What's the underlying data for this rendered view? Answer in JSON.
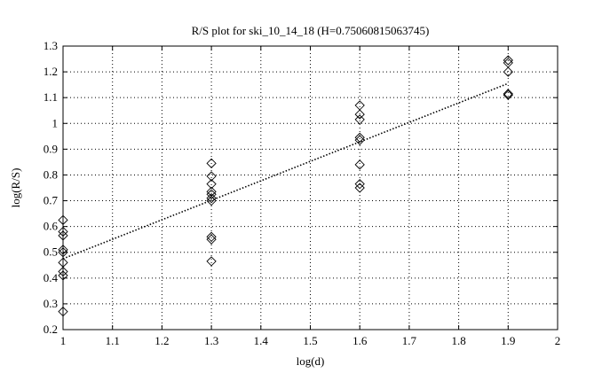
{
  "chart_data": {
    "type": "scatter",
    "title": "R/S plot for ski_10_14_18 (H=0.75060815063745)",
    "xlabel": "log(d)",
    "ylabel": "log(R/S)",
    "xlim": [
      1,
      2
    ],
    "ylim": [
      0.2,
      1.3
    ],
    "xticks": [
      "1",
      "1.1",
      "1.2",
      "1.3",
      "1.4",
      "1.5",
      "1.6",
      "1.7",
      "1.8",
      "1.9",
      "2"
    ],
    "yticks": [
      "0.2",
      "0.3",
      "0.4",
      "0.5",
      "0.6",
      "0.7",
      "0.8",
      "0.9",
      "1",
      "1.1",
      "1.2",
      "1.3"
    ],
    "grid": true,
    "series": [
      {
        "marker": "diamond",
        "points": [
          [
            1.0,
            0.625
          ],
          [
            1.0,
            0.58
          ],
          [
            1.0,
            0.565
          ],
          [
            1.0,
            0.51
          ],
          [
            1.0,
            0.5
          ],
          [
            1.0,
            0.46
          ],
          [
            1.0,
            0.425
          ],
          [
            1.0,
            0.41
          ],
          [
            1.0,
            0.27
          ],
          [
            1.3,
            0.845
          ],
          [
            1.3,
            0.795
          ],
          [
            1.3,
            0.765
          ],
          [
            1.3,
            0.735
          ],
          [
            1.3,
            0.725
          ],
          [
            1.3,
            0.71
          ],
          [
            1.3,
            0.7
          ],
          [
            1.3,
            0.56
          ],
          [
            1.3,
            0.55
          ],
          [
            1.3,
            0.465
          ],
          [
            1.6,
            1.07
          ],
          [
            1.6,
            1.035
          ],
          [
            1.6,
            1.015
          ],
          [
            1.6,
            0.945
          ],
          [
            1.6,
            0.935
          ],
          [
            1.6,
            0.84
          ],
          [
            1.6,
            0.765
          ],
          [
            1.6,
            0.75
          ],
          [
            1.9,
            1.245
          ],
          [
            1.9,
            1.235
          ],
          [
            1.9,
            1.2
          ],
          [
            1.9,
            1.115
          ],
          [
            1.9,
            1.11
          ]
        ]
      },
      {
        "style": "dotted-line",
        "points": [
          [
            1.0,
            0.475
          ],
          [
            1.9,
            1.155
          ]
        ]
      }
    ]
  }
}
